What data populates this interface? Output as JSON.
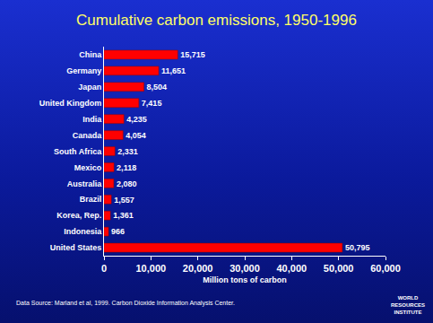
{
  "chart_data": {
    "type": "bar",
    "orientation": "horizontal",
    "title": "Cumulative carbon emissions, 1950-1996",
    "x_label": "Million tons of carbon",
    "categories": [
      "China",
      "Germany",
      "Japan",
      "United Kingdom",
      "India",
      "Canada",
      "South Africa",
      "Mexico",
      "Australia",
      "Brazil",
      "Korea, Rep.",
      "Indonesia",
      "United States"
    ],
    "values": [
      15715,
      11651,
      8504,
      7415,
      4235,
      4054,
      2331,
      2118,
      2080,
      1557,
      1361,
      966,
      50795
    ],
    "value_labels": [
      "15,715",
      "11,651",
      "8,504",
      "7,415",
      "4,235",
      "4,054",
      "2,331",
      "2,118",
      "2,080",
      "1,557",
      "1,361",
      "966",
      "50,795"
    ],
    "data_labels": true,
    "color": "#ff0000",
    "xlim": [
      0,
      60000
    ],
    "xticks": [
      0,
      {
        "value": 10000,
        "label": "10,000"
      },
      {
        "value": 20000,
        "label": "20,000"
      },
      {
        "value": 30000,
        "label": "30,000"
      },
      {
        "value": 40000,
        "label": "40,000"
      },
      {
        "value": 50000,
        "label": "50,000"
      },
      {
        "value": 60000,
        "label": "60,000"
      }
    ],
    "grid": false,
    "annotations": [
      {
        "text": "Data Source: Marland et al, 1999. Carbon Dioxide Information Analysis Center."
      },
      {
        "text": "WORLD RESOURCES INSTITUTE"
      }
    ]
  }
}
